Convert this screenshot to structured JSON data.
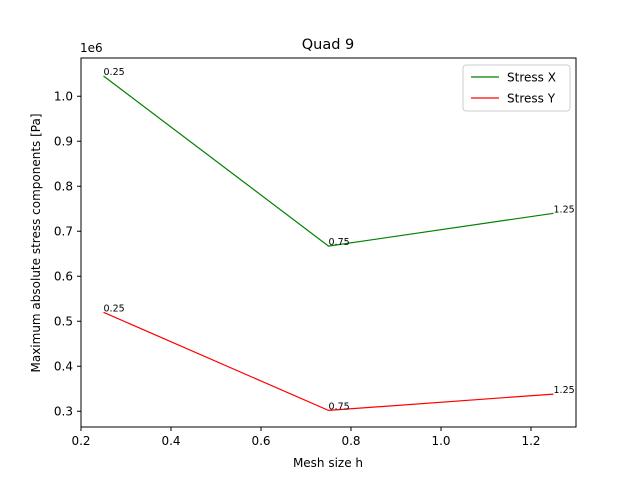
{
  "chart_data": {
    "type": "line",
    "title": "Quad 9",
    "xlabel": "Mesh size h",
    "ylabel": "Maximum absolute stress components [Pa]",
    "y_offset_label": "1e6",
    "y_scale": 1000000,
    "xlim": [
      0.2,
      1.3
    ],
    "ylim": [
      0.265,
      1.085
    ],
    "xticks": [
      0.2,
      0.4,
      0.6,
      0.8,
      1.0,
      1.2
    ],
    "xtick_labels": [
      "0.2",
      "0.4",
      "0.6",
      "0.8",
      "1.0",
      "1.2"
    ],
    "yticks": [
      0.3,
      0.4,
      0.5,
      0.6,
      0.7,
      0.8,
      0.9,
      1.0
    ],
    "ytick_labels": [
      "0.3",
      "0.4",
      "0.5",
      "0.6",
      "0.7",
      "0.8",
      "0.9",
      "1.0"
    ],
    "grid": false,
    "legend_position": "top-right",
    "x": [
      0.25,
      0.75,
      1.25
    ],
    "series": [
      {
        "name": "Stress X",
        "color": "#008000",
        "values": [
          1045000,
          667000,
          740000
        ],
        "point_labels": [
          "0.25",
          "0.75",
          "1.25"
        ]
      },
      {
        "name": "Stress Y",
        "color": "#ff0000",
        "values": [
          520000,
          302000,
          338000
        ],
        "point_labels": [
          "0.25",
          "0.75",
          "1.25"
        ]
      }
    ]
  }
}
